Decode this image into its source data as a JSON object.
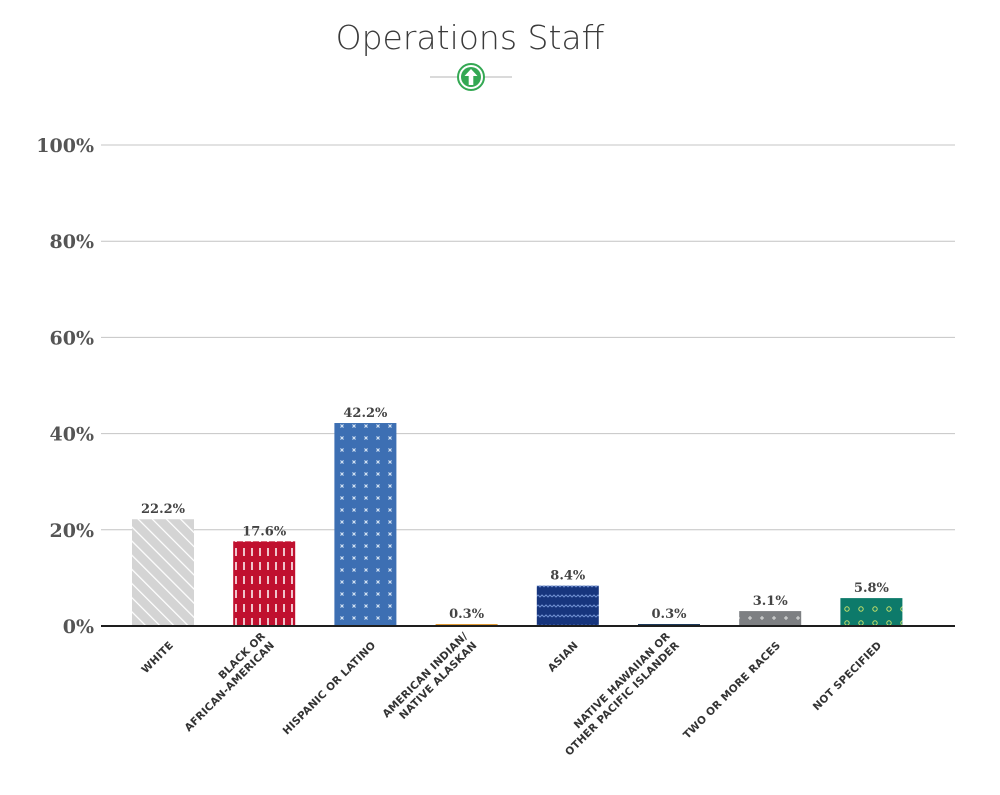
{
  "chart_data": {
    "type": "bar",
    "title": "Operations Staff",
    "indicator_icon": "green-up-arrow-circle-icon",
    "categories": [
      [
        "WHITE"
      ],
      [
        "BLACK OR",
        "AFRICAN-AMERICAN"
      ],
      [
        "HISPANIC OR LATINO"
      ],
      [
        "AMERICAN INDIAN/",
        "NATIVE ALASKAN"
      ],
      [
        "ASIAN"
      ],
      [
        "NATIVE HAWAIIAN OR",
        "OTHER PACIFIC ISLANDER"
      ],
      [
        "TWO OR MORE RACES"
      ],
      [
        "NOT SPECIFIED"
      ]
    ],
    "values": [
      22.2,
      17.6,
      42.2,
      0.3,
      8.4,
      0.3,
      3.1,
      5.8
    ],
    "value_labels": [
      "22.2%",
      "17.6%",
      "42.2%",
      "0.3%",
      "8.4%",
      "0.3%",
      "3.1%",
      "5.8%"
    ],
    "ylim": [
      0,
      100
    ],
    "yticks": [
      0,
      20,
      40,
      60,
      80,
      100
    ],
    "ytick_labels": [
      "0%",
      "20%",
      "40%",
      "60%",
      "80%",
      "100%"
    ],
    "grid": true,
    "colors": {
      "white": "#d4d4d4",
      "black": "#c0102f",
      "hispanic": "#3d6fb3",
      "american_indian": "#e09a35",
      "asian": "#17357d",
      "hawaiian": "#1d3a5c",
      "two_or_more": "#7d7f82",
      "not_specified": "#0d7a6a",
      "indicator": "#34a853"
    }
  }
}
